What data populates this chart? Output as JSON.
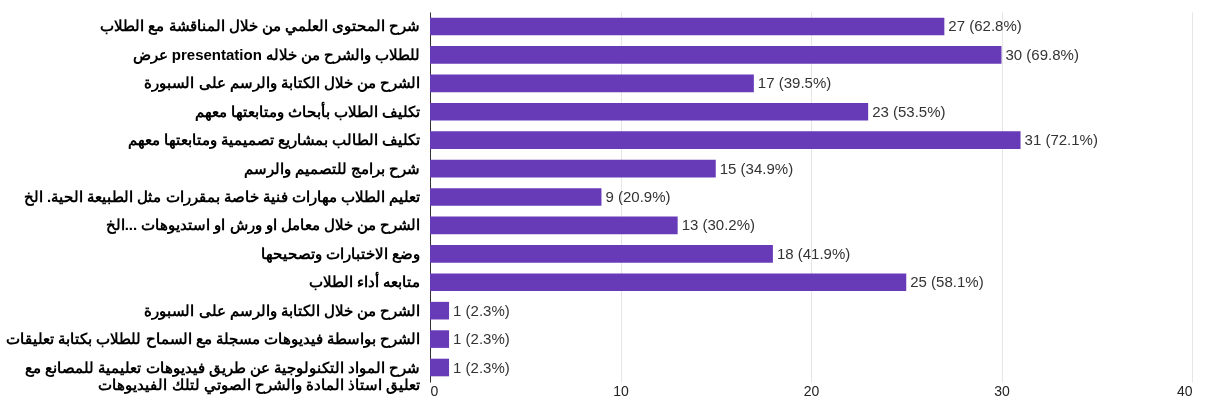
{
  "chart_data": {
    "type": "bar",
    "orientation": "horizontal",
    "categories": [
      "شرح المحتوى العلمي من خلال المناقشة مع الطلاب",
      "عرض presentation للطلاب والشرح من خلاله",
      "الشرح من خلال الكتابة والرسم على السبورة",
      "تكليف الطلاب بأبحاث ومتابعتها معهم",
      "تكليف الطالب بمشاريع تصميمية ومتابعتها معهم",
      "شرح برامج للتصميم والرسم",
      "تعليم الطلاب مهارات فنية خاصة بمقررات مثل الطبيعة الحية. الخ",
      "الشرح من خلال معامل او ورش او استديوهات ...الخ",
      "وضع الاختبارات وتصحيحها",
      "متابعه أداء الطلاب",
      "الشرح من خلال الكتابة والرسم على السبورة",
      "الشرح بواسطة فيديوهات مسجلة مع السماح للطلاب بكتابة تعليقات",
      "شرح المواد التكنولوجية عن طريق فيديوهات تعليمية للمصانع مع\nتعليق استاذ المادة والشرح الصوتي لتلك الفيديوهات"
    ],
    "values": [
      27,
      30,
      17,
      23,
      31,
      15,
      9,
      13,
      18,
      25,
      1,
      1,
      1
    ],
    "value_labels": [
      "27 (62.8%)",
      "30 (69.8%)",
      "17 (39.5%)",
      "23 (53.5%)",
      "31 (72.1%)",
      "15 (34.9%)",
      "9 (20.9%)",
      "13 (30.2%)",
      "18 (41.9%)",
      "25 (58.1%)",
      "1 (2.3%)",
      "1 (2.3%)",
      "1 (2.3%)"
    ],
    "color": "#673ab7",
    "xlim": [
      0,
      40
    ],
    "xticks": [
      0,
      10,
      20,
      30,
      40
    ],
    "grid": "x"
  }
}
